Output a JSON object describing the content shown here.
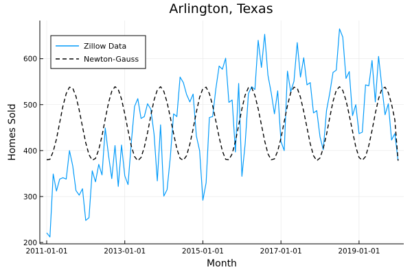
{
  "chart_data": {
    "type": "line",
    "title": "Arlington, Texas",
    "xlabel": "Month",
    "ylabel": "Homes Sold",
    "x_start": "2011-01",
    "x_end": "2019-12",
    "x_ticks": [
      "2011-01-01",
      "2013-01-01",
      "2015-01-01",
      "2017-01-01",
      "2019-01-01"
    ],
    "y_ticks": [
      200,
      300,
      400,
      500,
      600
    ],
    "ylim": [
      197,
      683
    ],
    "grid": true,
    "legend_position": "top-left",
    "series": [
      {
        "name": "Zillow Data",
        "color": "#009AFA",
        "dash": "solid",
        "values": [
          221,
          212,
          349,
          312,
          338,
          341,
          338,
          400,
          367,
          313,
          303,
          317,
          248,
          254,
          356,
          332,
          370,
          347,
          449,
          390,
          339,
          411,
          322,
          412,
          345,
          326,
          417,
          496,
          513,
          470,
          474,
          502,
          490,
          436,
          334,
          456,
          301,
          315,
          386,
          480,
          474,
          560,
          548,
          522,
          506,
          523,
          432,
          400,
          292,
          330,
          472,
          474,
          535,
          584,
          577,
          601,
          505,
          510,
          397,
          546,
          344,
          415,
          524,
          539,
          533,
          640,
          581,
          653,
          564,
          526,
          480,
          530,
          420,
          400,
          573,
          528,
          551,
          635,
          560,
          602,
          543,
          548,
          482,
          487,
          430,
          402,
          487,
          525,
          570,
          575,
          665,
          647,
          557,
          572,
          476,
          500,
          437,
          440,
          543,
          541,
          596,
          506,
          605,
          540,
          478,
          502,
          423,
          437,
          378
        ]
      },
      {
        "name": "Newton-Gauss",
        "color": "#000000",
        "dash": "dashed",
        "values": [
          380,
          381,
          398,
          425,
          461,
          497,
          524,
          538,
          536,
          518,
          488,
          452,
          417,
          391,
          379,
          383,
          402,
          432,
          469,
          504,
          529,
          539,
          533,
          512,
          480,
          444,
          410,
          387,
          378,
          385,
          407,
          439,
          476,
          510,
          532,
          539,
          529,
          505,
          472,
          437,
          404,
          383,
          379,
          389,
          414,
          447,
          484,
          516,
          535,
          538,
          524,
          498,
          464,
          429,
          399,
          381,
          380,
          393,
          420,
          455,
          491,
          521,
          537,
          537,
          520,
          491,
          456,
          421,
          393,
          380,
          382,
          399,
          427,
          463,
          498,
          526,
          538,
          536,
          516,
          485,
          450,
          415,
          389,
          378,
          384,
          405,
          435,
          472,
          507,
          531,
          539,
          531,
          509,
          477,
          442,
          408,
          385,
          379,
          387,
          411,
          444,
          481,
          513,
          534,
          538,
          526,
          501,
          467,
          378
        ]
      }
    ]
  }
}
